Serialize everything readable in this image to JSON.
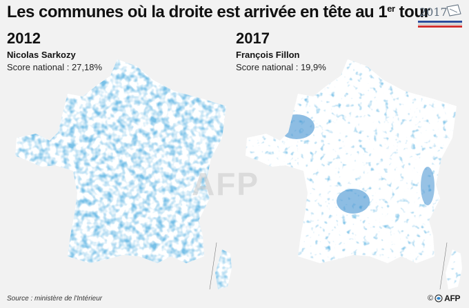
{
  "header": {
    "title_main": "Les communes où la droite est arrivée en tête au 1",
    "title_sup": "er",
    "title_end": " tour",
    "badge_year": "2017"
  },
  "panels": [
    {
      "year": "2012",
      "candidate": "Nicolas Sarkozy",
      "score": "Score national : 27,18%"
    },
    {
      "year": "2017",
      "candidate": "François Fillon",
      "score": "Score national : 19,9%"
    }
  ],
  "colors": {
    "commune_fill": "#2f86cc",
    "land": "#ffffff",
    "background": "#f2f2f2",
    "tricolor_blue": "#2b4c9b",
    "tricolor_red": "#d3302f"
  },
  "watermark": "AFP",
  "footer": {
    "source": "Source : ministère de l'Intérieur",
    "copyright": "©",
    "agency": "AFP"
  }
}
